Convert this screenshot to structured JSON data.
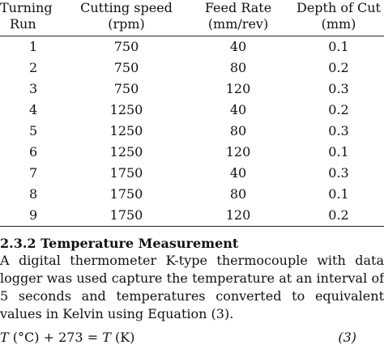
{
  "table": {
    "headers": [
      {
        "line1": "Turning",
        "line2": "Run"
      },
      {
        "line1": "Cutting speed",
        "line2": "(rpm)"
      },
      {
        "line1": "Feed Rate",
        "line2": "(mm/rev)"
      },
      {
        "line1": "Depth of Cut",
        "line2": "(mm)"
      }
    ],
    "rows": [
      [
        "1",
        "750",
        "40",
        "0.1"
      ],
      [
        "2",
        "750",
        "80",
        "0.2"
      ],
      [
        "3",
        "750",
        "120",
        "0.3"
      ],
      [
        "4",
        "1250",
        "40",
        "0.2"
      ],
      [
        "5",
        "1250",
        "80",
        "0.3"
      ],
      [
        "6",
        "1250",
        "120",
        "0.1"
      ],
      [
        "7",
        "1750",
        "40",
        "0.3"
      ],
      [
        "8",
        "1750",
        "80",
        "0.1"
      ],
      [
        "9",
        "1750",
        "120",
        "0.2"
      ]
    ]
  },
  "section": {
    "heading": "2.3.2 Temperature Measurement",
    "paragraph": "A digital thermometer K-type thermocouple with data logger was used capture the temperature at an interval of 5 seconds and temperatures converted to equivalent values in Kelvin using Equation (3)."
  },
  "equation": {
    "lhs_var": "T",
    "lhs_unit": " (°C) + 273 = ",
    "rhs_var": "T",
    "rhs_unit": " (K)",
    "number": "(3)"
  }
}
